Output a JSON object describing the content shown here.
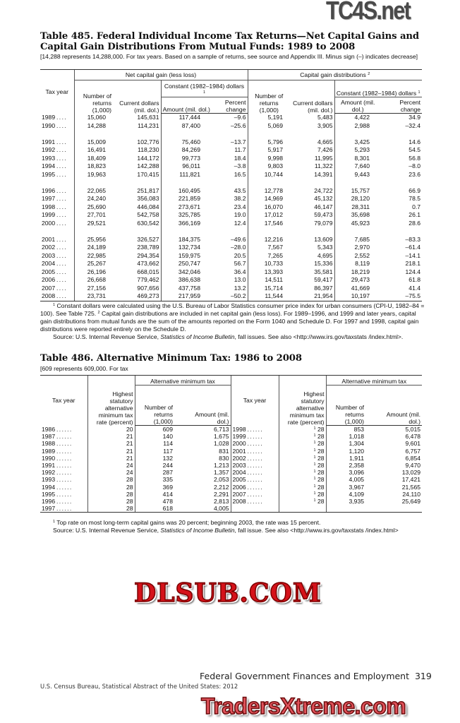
{
  "watermarks": {
    "top": "TC4S.net",
    "middle": "DLSUB.COM",
    "bottom": "TradersXtreme.com"
  },
  "table485": {
    "title_line1": "Table 485. Federal Individual Income Tax Returns—Net Capital Gains and",
    "title_line2": "Capital Gain Distributions From Mutual Funds: 1989 to 2008",
    "subtitle": "[14,288 represents 14,288,000. For tax years. Based on a sample of returns, see source and Appendix III. Minus sign (–) indicates decrease]",
    "headers": {
      "tax_year": "Tax year",
      "group_net": "Net capital gain (less loss)",
      "group_dist": "Capital gain distributions",
      "group_dist_note": "2",
      "constant": "Constant (1982–1984) dollars",
      "constant_note": "1",
      "number_returns": "Number of returns (1,000)",
      "current_dollars": "Current dollars (mil. dol.)",
      "amount": "Amount (mil. dol.)",
      "percent_change": "Percent change"
    },
    "rows": [
      [
        "1989",
        "15,060",
        "145,631",
        "117,444",
        "–9.6",
        "5,191",
        "5,483",
        "4,422",
        "34.9"
      ],
      [
        "1990",
        "14,288",
        "114,231",
        "87,400",
        "–25.6",
        "5,069",
        "3,905",
        "2,988",
        "–32.4"
      ],
      null,
      [
        "1991",
        "15,009",
        "102,776",
        "75,460",
        "–13.7",
        "5,796",
        "4,665",
        "3,425",
        "14.6"
      ],
      [
        "1992",
        "16,491",
        "118,230",
        "84,269",
        "11.7",
        "5,917",
        "7,426",
        "5,293",
        "54.5"
      ],
      [
        "1993",
        "18,409",
        "144,172",
        "99,773",
        "18.4",
        "9,998",
        "11,995",
        "8,301",
        "56.8"
      ],
      [
        "1994",
        "18,823",
        "142,288",
        "96,011",
        "–3.8",
        "9,803",
        "11,322",
        "7,640",
        "–8.0"
      ],
      [
        "1995",
        "19,963",
        "170,415",
        "111,821",
        "16.5",
        "10,744",
        "14,391",
        "9,443",
        "23.6"
      ],
      null,
      [
        "1996",
        "22,065",
        "251,817",
        "160,495",
        "43.5",
        "12,778",
        "24,722",
        "15,757",
        "66.9"
      ],
      [
        "1997",
        "24,240",
        "356,083",
        "221,859",
        "38.2",
        "14,969",
        "45,132",
        "28,120",
        "78.5"
      ],
      [
        "1998",
        "25,690",
        "446,084",
        "273,671",
        "23.4",
        "16,070",
        "46,147",
        "28,311",
        "0.7"
      ],
      [
        "1999",
        "27,701",
        "542,758",
        "325,785",
        "19.0",
        "17,012",
        "59,473",
        "35,698",
        "26.1"
      ],
      [
        "2000",
        "29,521",
        "630,542",
        "366,169",
        "12.4",
        "17,546",
        "79,079",
        "45,923",
        "28.6"
      ],
      null,
      [
        "2001",
        "25,956",
        "326,527",
        "184,375",
        "–49.6",
        "12,216",
        "13,609",
        "7,685",
        "–83.3"
      ],
      [
        "2002",
        "24,189",
        "238,789",
        "132,734",
        "–28.0",
        "7,567",
        "5,343",
        "2,970",
        "–61.4"
      ],
      [
        "2003",
        "22,985",
        "294,354",
        "159,975",
        "20.5",
        "7,265",
        "4,695",
        "2,552",
        "–14.1"
      ],
      [
        "2004",
        "25,267",
        "473,662",
        "250,747",
        "56.7",
        "10,733",
        "15,336",
        "8,119",
        "218.1"
      ],
      [
        "2005",
        "26,196",
        "668,015",
        "342,046",
        "36.4",
        "13,393",
        "35,581",
        "18,219",
        "124.4"
      ],
      [
        "2006",
        "26,668",
        "779,462",
        "386,638",
        "13.0",
        "14,511",
        "59,417",
        "29,473",
        "61.8"
      ],
      [
        "2007",
        "27,156",
        "907,656",
        "437,758",
        "13.2",
        "15,714",
        "86,397",
        "41,669",
        "41.4"
      ],
      [
        "2008",
        "23,731",
        "469,273",
        "217,959",
        "–50.2",
        "11,544",
        "21,954",
        "10,197",
        "–75.5"
      ]
    ],
    "footnote1": "Constant dollars were calculated using the U.S. Bureau of Labor Statistics consumer price index for urban consumers (CPI-U, 1982–84 = 100). See Table 725.",
    "footnote2": "Capital gain distributions are included in net capital gain (less loss). For 1989–1996, and 1999 and later years, capital gain distributions from mutual funds are the sum of the amounts reported on the Form 1040 and Schedule D. For 1997 and 1998, capital gain distributions were reported entirely on the Schedule D.",
    "source_prefix": "Source: U.S. Internal Revenue Service, ",
    "source_italic": "Statistics of Income Bulletin",
    "source_suffix": ", fall issues. See also <http://www.irs.gov/taxstats /index.html>."
  },
  "table486": {
    "title": "Table 486. Alternative Minimum Tax: 1986 to 2008",
    "subtitle": "[609 represents 609,000. For tax",
    "headers": {
      "tax_year": "Tax year",
      "rate": "Highest statutory alternative minimum tax rate (percent)",
      "group": "Alternative minimum tax",
      "number_returns": "Number of returns (1,000)",
      "amount": "Amount (mil. dol.)"
    },
    "rows": [
      [
        [
          "1986",
          "20",
          "609",
          "6,713"
        ],
        [
          "1998",
          "28",
          "853",
          "5,015"
        ]
      ],
      [
        [
          "1987",
          "21",
          "140",
          "1,675"
        ],
        [
          "1999",
          "28",
          "1,018",
          "6,478"
        ]
      ],
      [
        [
          "1988",
          "21",
          "114",
          "1,028"
        ],
        [
          "2000",
          "28",
          "1,304",
          "9,601"
        ]
      ],
      [
        [
          "1989",
          "21",
          "117",
          "831"
        ],
        [
          "2001",
          "28",
          "1,120",
          "6,757"
        ]
      ],
      [
        [
          "1990",
          "21",
          "132",
          "830"
        ],
        [
          "2002",
          "28",
          "1,911",
          "6,854"
        ]
      ],
      [
        [
          "1991",
          "24",
          "244",
          "1,213"
        ],
        [
          "2003",
          "28",
          "2,358",
          "9,470"
        ]
      ],
      [
        [
          "1992",
          "24",
          "287",
          "1,357"
        ],
        [
          "2004",
          "28",
          "3,096",
          "13,029"
        ]
      ],
      [
        [
          "1993",
          "28",
          "335",
          "2,053"
        ],
        [
          "2005",
          "28",
          "4,005",
          "17,421"
        ]
      ],
      [
        [
          "1994",
          "28",
          "369",
          "2,212"
        ],
        [
          "2006",
          "28",
          "3,967",
          "21,565"
        ]
      ],
      [
        [
          "1995",
          "28",
          "414",
          "2,291"
        ],
        [
          "2007",
          "28",
          "4,109",
          "24,110"
        ]
      ],
      [
        [
          "1996",
          "28",
          "478",
          "2,813"
        ],
        [
          "2008",
          "28",
          "3,935",
          "25,649"
        ]
      ],
      [
        [
          "1997",
          "28",
          "618",
          "4,005"
        ],
        null
      ]
    ],
    "rate_note": "1",
    "footnote1": "Top rate on most long-term capital gains was 20 percent; beginning 2003, the rate was 15 percent.",
    "source_prefix": "Source: U.S. Internal Revenue Service, ",
    "source_italic": "Statistics of Income Bulletin",
    "source_suffix": ", fall issue. See also <http://www.irs.gov/taxstats /index.html>"
  },
  "footer": {
    "section": "Federal Government Finances and Employment",
    "page_number": "319",
    "publication": "U.S. Census Bureau, Statistical Abstract of the United States: 2012"
  }
}
